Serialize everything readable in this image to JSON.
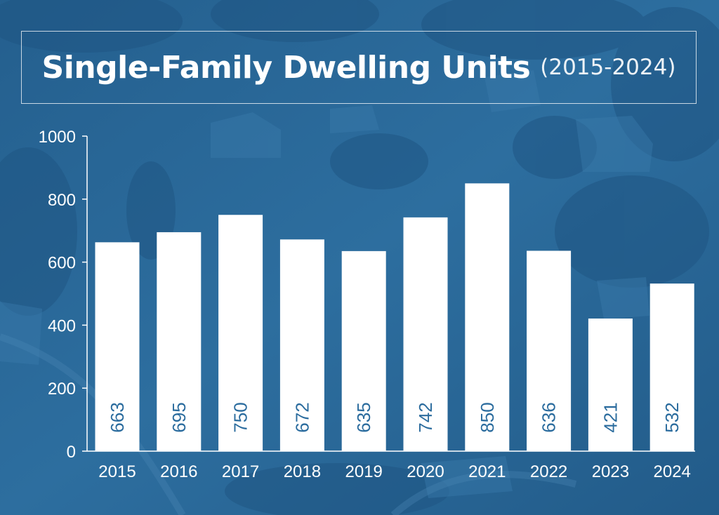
{
  "header": {
    "title": "Single-Family Dwelling Units",
    "subtitle": "(2015-2024)"
  },
  "colors": {
    "background": "#2a6a9b",
    "bar": "#ffffff",
    "value_text": "#2b6c9e",
    "axis": "#ffffff"
  },
  "chart_data": {
    "type": "bar",
    "title": "Single-Family Dwelling Units",
    "subtitle": "(2015-2024)",
    "categories": [
      "2015",
      "2016",
      "2017",
      "2018",
      "2019",
      "2020",
      "2021",
      "2022",
      "2023",
      "2024"
    ],
    "values": [
      663,
      695,
      750,
      672,
      635,
      742,
      850,
      636,
      421,
      532
    ],
    "value_labels": [
      "663",
      "695",
      "750",
      "672",
      "635",
      "742",
      "850",
      "636",
      "421",
      "532"
    ],
    "ylim": [
      0,
      1000
    ],
    "yticks": [
      0,
      200,
      400,
      600,
      800,
      1000
    ],
    "ytick_labels": [
      "0",
      "200",
      "400",
      "600",
      "800",
      "1000"
    ],
    "xlabel": "",
    "ylabel": "",
    "grid": false,
    "legend": "none",
    "value_label_orientation": "vertical"
  }
}
